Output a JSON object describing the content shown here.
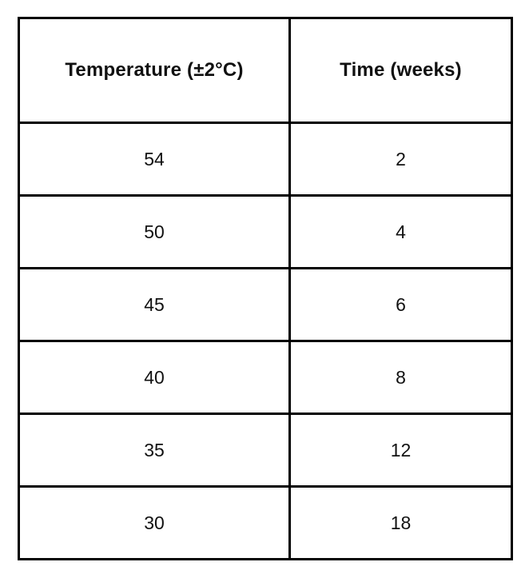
{
  "table": {
    "columns": [
      {
        "id": "temperature",
        "label": "Temperature (±2°C)"
      },
      {
        "id": "time",
        "label": "Time (weeks)"
      }
    ],
    "rows": [
      {
        "temperature": "54",
        "time": "2"
      },
      {
        "temperature": "50",
        "time": "4"
      },
      {
        "temperature": "45",
        "time": "6"
      },
      {
        "temperature": "40",
        "time": "8"
      },
      {
        "temperature": "35",
        "time": "12"
      },
      {
        "temperature": "30",
        "time": "18"
      }
    ]
  },
  "chart_data": {
    "type": "table",
    "title": "",
    "columns": [
      "Temperature (±2°C)",
      "Time (weeks)"
    ],
    "x_label": "Temperature (±2°C)",
    "y_label": "Time (weeks)",
    "x": [
      54,
      50,
      45,
      40,
      35,
      30
    ],
    "y": [
      2,
      4,
      6,
      8,
      12,
      18
    ],
    "rows": [
      [
        54,
        2
      ],
      [
        50,
        4
      ],
      [
        45,
        6
      ],
      [
        40,
        8
      ],
      [
        35,
        12
      ],
      [
        30,
        18
      ]
    ]
  },
  "colors": {
    "border": "#000000",
    "text": "#111111",
    "background": "#ffffff"
  }
}
